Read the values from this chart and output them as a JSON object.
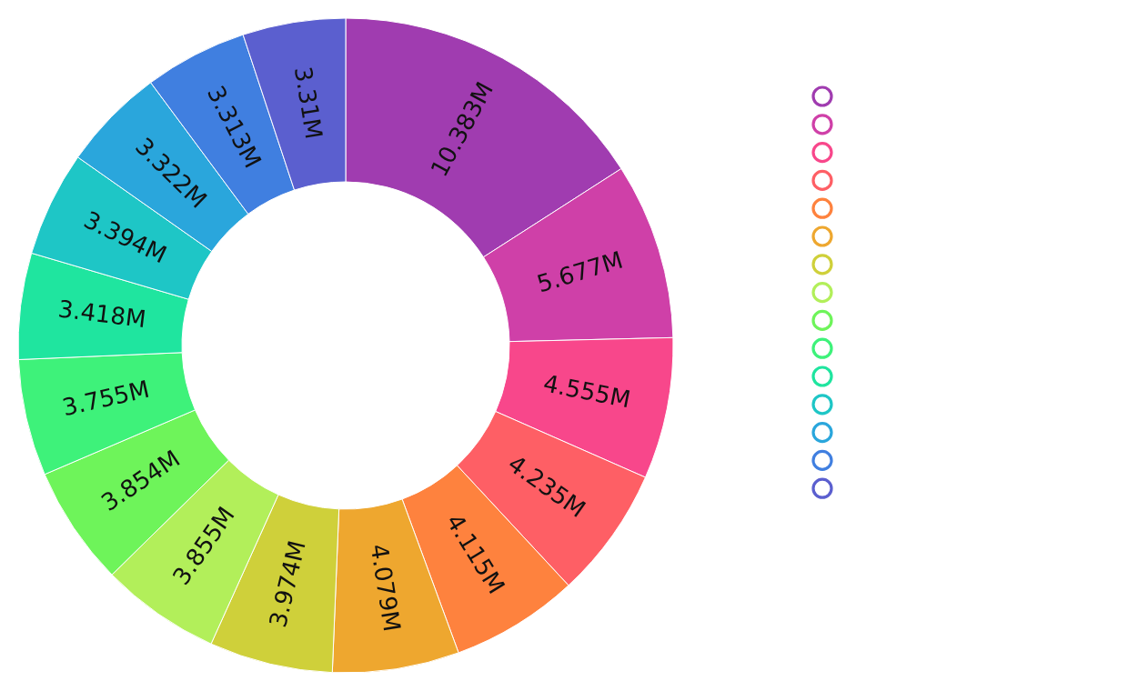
{
  "chart_data": {
    "type": "donut",
    "categories": [
      null,
      null,
      null,
      null,
      null,
      null,
      null,
      null,
      null,
      null,
      null,
      null,
      null,
      null,
      null
    ],
    "values": [
      10.383,
      5.677,
      4.555,
      4.235,
      4.115,
      4.079,
      3.974,
      3.855,
      3.854,
      3.755,
      3.418,
      3.394,
      3.322,
      3.313,
      3.31
    ],
    "value_labels": [
      "10.383M",
      "5.677M",
      "4.555M",
      "4.235M",
      "4.115M",
      "4.079M",
      "3.974M",
      "3.855M",
      "3.854M",
      "3.755M",
      "3.418M",
      "3.394M",
      "3.322M",
      "3.313M",
      "3.31M"
    ],
    "colors": [
      "#a03cb0",
      "#cf40a8",
      "#f8478b",
      "#fe5f65",
      "#fe823e",
      "#eea72f",
      "#cfd03a",
      "#b2ef5a",
      "#6ef45a",
      "#3ef27a",
      "#1fe59f",
      "#1ec6c6",
      "#2aa6dc",
      "#407fe0",
      "#5b5fcf"
    ]
  }
}
